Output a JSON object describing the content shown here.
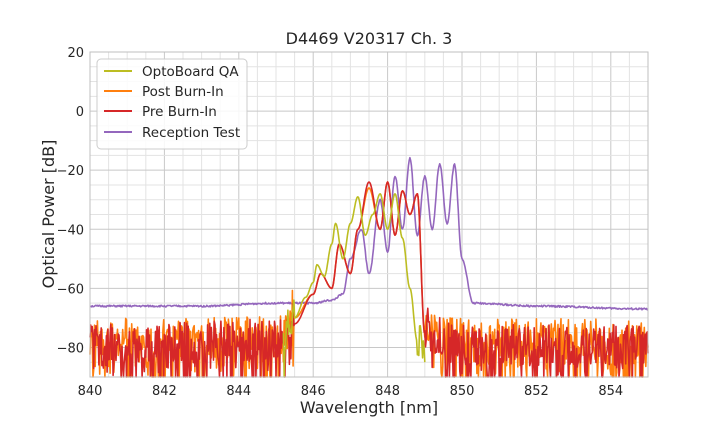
{
  "chart_data": {
    "type": "line",
    "title": "D4469 V20317 Ch. 3",
    "xlabel": "Wavelength [nm]",
    "ylabel": "Optical Power [dB]",
    "xlim": [
      840,
      855
    ],
    "ylim": [
      -90,
      20
    ],
    "xticks": [
      "840",
      "842",
      "844",
      "846",
      "848",
      "850",
      "852",
      "854"
    ],
    "yticks": [
      "20",
      "0",
      "−20",
      "−40",
      "−60",
      "−80"
    ],
    "grid": true,
    "legend_position": "top-left",
    "series": [
      {
        "name": "OptoBoard QA",
        "color": "#bcbd22",
        "x": [
          845.2,
          845.5,
          845.8,
          846.0,
          846.1,
          846.3,
          846.5,
          846.6,
          846.8,
          847.0,
          847.2,
          847.4,
          847.6,
          847.8,
          848.0,
          848.2,
          848.4,
          848.6,
          848.8,
          849.0
        ],
        "values": [
          -80,
          -70,
          -63,
          -58,
          -52,
          -56,
          -45,
          -38,
          -50,
          -38,
          -29,
          -42,
          -35,
          -28,
          -40,
          -28,
          -43,
          -60,
          -78,
          -85
        ]
      },
      {
        "name": "Post Burn-In",
        "color": "#ff7f0e",
        "x": [
          840,
          845,
          845.5,
          846.0,
          846.2,
          846.5,
          846.7,
          847.0,
          847.2,
          847.5,
          847.8,
          848.0,
          848.2,
          848.4,
          848.6,
          848.8,
          849.0,
          850,
          855
        ],
        "values": [
          -80,
          -79,
          -70,
          -62,
          -55,
          -60,
          -45,
          -55,
          -40,
          -26,
          -40,
          -24,
          -42,
          -27,
          -35,
          -28,
          -75,
          -80,
          -80
        ]
      },
      {
        "name": "Pre Burn-In",
        "color": "#d62728",
        "x": [
          840,
          845,
          845.5,
          846.0,
          846.2,
          846.5,
          846.7,
          847.0,
          847.2,
          847.5,
          847.8,
          848.0,
          848.2,
          848.4,
          848.6,
          848.8,
          849.0,
          850,
          855
        ],
        "values": [
          -82,
          -80,
          -72,
          -62,
          -55,
          -60,
          -45,
          -55,
          -40,
          -24,
          -40,
          -24,
          -42,
          -27,
          -35,
          -28,
          -76,
          -82,
          -82
        ]
      },
      {
        "name": "Reception Test",
        "color": "#9467bd",
        "x": [
          840,
          843,
          845,
          846.0,
          846.5,
          846.8,
          847.0,
          847.3,
          847.5,
          847.8,
          848.0,
          848.2,
          848.4,
          848.6,
          848.8,
          849.0,
          849.2,
          849.4,
          849.6,
          849.8,
          850.0,
          850.3,
          852,
          855
        ],
        "values": [
          -66,
          -66,
          -65,
          -65,
          -64,
          -62,
          -50,
          -40,
          -55,
          -30,
          -48,
          -22,
          -40,
          -16,
          -42,
          -22,
          -40,
          -18,
          -38,
          -18,
          -50,
          -65,
          -66,
          -67
        ]
      }
    ]
  }
}
